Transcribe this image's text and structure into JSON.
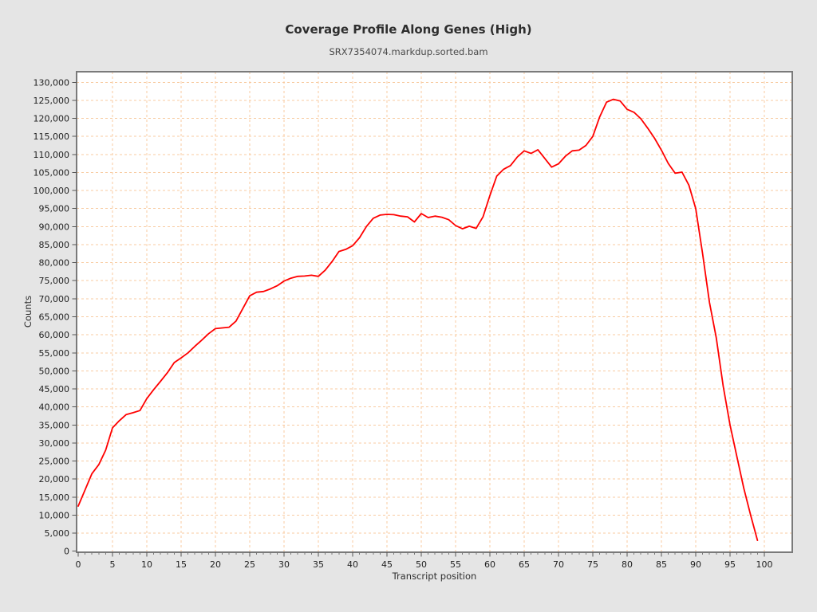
{
  "chart_data": {
    "type": "line",
    "title": "Coverage Profile Along Genes (High)",
    "subtitle": "SRX7354074.markdup.sorted.bam",
    "xlabel": "Transcript position",
    "ylabel": "Counts",
    "xlim": [
      0,
      104
    ],
    "ylim": [
      0,
      133000
    ],
    "grid": "dashed, both axes, every 5 x-units and 5000 y-units",
    "legend_position": "none",
    "x_ticks": [
      0,
      5,
      10,
      15,
      20,
      25,
      30,
      35,
      40,
      45,
      50,
      55,
      60,
      65,
      70,
      75,
      80,
      85,
      90,
      95,
      100
    ],
    "y_ticks": [
      0,
      5000,
      10000,
      15000,
      20000,
      25000,
      30000,
      35000,
      40000,
      45000,
      50000,
      55000,
      60000,
      65000,
      70000,
      75000,
      80000,
      85000,
      90000,
      95000,
      100000,
      105000,
      110000,
      115000,
      120000,
      125000,
      130000
    ],
    "x_start": 0,
    "x_step": 1,
    "series": [
      {
        "name": "coverage",
        "values": [
          12500,
          17000,
          21500,
          24000,
          28000,
          34200,
          36200,
          37900,
          38400,
          39000,
          42300,
          44800,
          47100,
          49500,
          52300,
          53600,
          55000,
          56800,
          58500,
          60300,
          61700,
          61900,
          62100,
          63800,
          67300,
          70800,
          71800,
          72000,
          72700,
          73600,
          74900,
          75700,
          76200,
          76300,
          76500,
          76200,
          77900,
          80300,
          83100,
          83700,
          84700,
          86900,
          90000,
          92300,
          93200,
          93400,
          93300,
          92900,
          92700,
          91300,
          93600,
          92500,
          92900,
          92600,
          91900,
          90300,
          89400,
          90100,
          89500,
          92700,
          98600,
          104000,
          105900,
          106900,
          109300,
          111000,
          110300,
          111300,
          108900,
          106500,
          107400,
          109500,
          111000,
          111200,
          112500,
          115000,
          120400,
          124500,
          125300,
          124800,
          122500,
          121700,
          119900,
          117300,
          114500,
          111200,
          107500,
          104800,
          105100,
          101500,
          95000,
          82500,
          69000,
          59100,
          45800,
          35000,
          26200,
          17500,
          10000,
          3000
        ]
      }
    ],
    "colors": {
      "line": "#ff0000",
      "grid": "#f8cba1",
      "frame": "#7a7a7a",
      "tick": "#555555",
      "tick_label": "#1f1f1f",
      "plot_bg": "#ffffff",
      "page_bg": "#e5e5e5"
    }
  }
}
